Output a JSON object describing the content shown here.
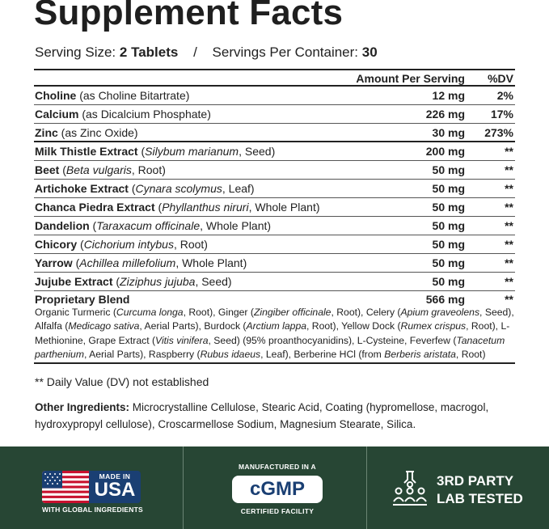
{
  "title": "Supplement Facts",
  "serving": {
    "size_label": "Serving Size:",
    "size_value": "2 Tablets",
    "separator": "/",
    "per_container_label": "Servings Per Container:",
    "per_container_value": "30"
  },
  "table": {
    "header_amount": "Amount Per Serving",
    "header_dv": "%DV",
    "rows": [
      {
        "name": "Choline",
        "detail": " (as Choline Bitartrate)",
        "amount": "12 mg",
        "dv": "2%"
      },
      {
        "name": "Calcium",
        "detail": " (as Dicalcium Phosphate)",
        "amount": "226 mg",
        "dv": "17%"
      },
      {
        "name": "Zinc",
        "detail": " (as Zinc Oxide)",
        "amount": "30 mg",
        "dv": "273%"
      },
      {
        "name": "Milk Thistle Extract",
        "pre": " (",
        "latin": "Silybum marianum",
        "post": ", Seed)",
        "amount": "200 mg",
        "dv": "**"
      },
      {
        "name": "Beet",
        "pre": " (",
        "latin": "Beta vulgaris",
        "post": ", Root)",
        "amount": "50 mg",
        "dv": "**"
      },
      {
        "name": "Artichoke Extract",
        "pre": " (",
        "latin": "Cynara scolymus",
        "post": ", Leaf)",
        "amount": "50 mg",
        "dv": "**"
      },
      {
        "name": "Chanca Piedra Extract",
        "pre": " (",
        "latin": "Phyllanthus niruri",
        "post": ", Whole Plant)",
        "amount": "50 mg",
        "dv": "**"
      },
      {
        "name": "Dandelion",
        "pre": " (",
        "latin": "Taraxacum officinale",
        "post": ", Whole Plant)",
        "amount": "50 mg",
        "dv": "**"
      },
      {
        "name": "Chicory",
        "pre": " (",
        "latin": "Cichorium intybus",
        "post": ", Root)",
        "amount": "50 mg",
        "dv": "**"
      },
      {
        "name": "Yarrow",
        "pre": " (",
        "latin": "Achillea millefolium",
        "post": ", Whole Plant)",
        "amount": "50 mg",
        "dv": "**"
      },
      {
        "name": "Jujube Extract",
        "pre": " (",
        "latin": "Ziziphus jujuba",
        "post": ", Seed)",
        "amount": "50 mg",
        "dv": "**"
      }
    ],
    "blend": {
      "name": "Proprietary Blend",
      "amount": "566 mg",
      "dv": "**",
      "ingredients": [
        {
          "t": "Organic Turmeric ("
        },
        {
          "i": "Curcuma longa"
        },
        {
          "t": ", Root), Ginger ("
        },
        {
          "i": "Zingiber officinale"
        },
        {
          "t": ", Root), Celery ("
        },
        {
          "i": "Apium graveolens"
        },
        {
          "t": ", Seed), Alfalfa ("
        },
        {
          "i": "Medicago sativa"
        },
        {
          "t": ", Aerial Parts), Burdock ("
        },
        {
          "i": "Arctium lappa"
        },
        {
          "t": ", Root), Yellow Dock ("
        },
        {
          "i": "Rumex crispus"
        },
        {
          "t": ", Root), L-Methionine, Grape Extract ("
        },
        {
          "i": "Vitis vinifera"
        },
        {
          "t": ", Seed) (95% proanthocyanidins), L-Cysteine, Feverfew ("
        },
        {
          "i": "Tanacetum parthenium"
        },
        {
          "t": ", Aerial Parts), Raspberry ("
        },
        {
          "i": "Rubus idaeus"
        },
        {
          "t": ", Leaf), Berberine HCl (from "
        },
        {
          "i": "Berberis aristata"
        },
        {
          "t": ", Root)"
        }
      ]
    }
  },
  "footnote": "** Daily Value (DV) not established",
  "other_ingredients": {
    "label": "Other Ingredients:",
    "text": " Microcrystalline Cellulose, Stearic Acid, Coating (hypromellose, macrogol, hydroxypropyl cellulose), Croscarmellose Sodium, Magnesium Stearate, Silica."
  },
  "badges": {
    "usa": {
      "made": "MADE IN",
      "country": "USA",
      "sub": "WITH GLOBAL INGREDIENTS"
    },
    "gmp": {
      "top": "MANUFACTURED IN A",
      "mark": "cGMP",
      "bottom": "CERTIFIED FACILITY"
    },
    "lab": {
      "line1": "3RD PARTY",
      "line2": "LAB TESTED"
    }
  },
  "colors": {
    "banner": "#274634",
    "usa_blue": "#1a3f73",
    "flag_red": "#c8102e"
  }
}
